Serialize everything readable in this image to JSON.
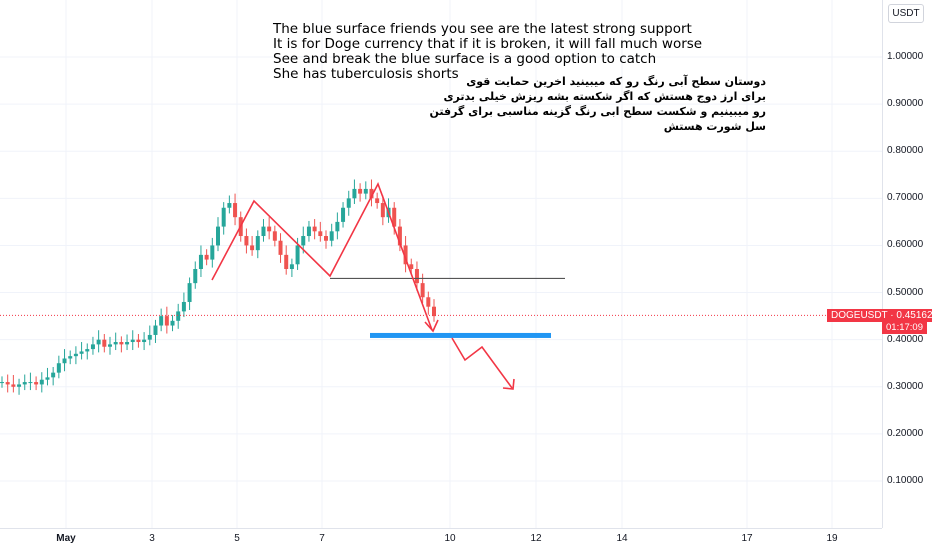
{
  "header": {
    "currency_label": "USDT"
  },
  "annotation_en": [
    "The blue surface friends you see are the latest strong support",
    "It is for Doge currency that if it is broken, it will fall much worse",
    "See and break the blue surface is a good option to catch",
    "She has tuberculosis shorts"
  ],
  "annotation_fa": [
    "دوستان سطح آبی رنگ رو که میبینید اخرین حمایت قوی",
    "برای ارز دوج هستش که اگر شکسته بشه ریزش خیلی بدتری",
    "رو میبینیم و شکست سطح ابی رنگ گزینه مناسبی برای گرفتن",
    "سل شورت هستش"
  ],
  "ticker": {
    "symbol": "DOGEUSDT",
    "price": "0.45162",
    "countdown": "01:17:09"
  },
  "colors": {
    "up": "#26a69a",
    "down": "#ef5350",
    "support": "#2196f3",
    "drawing": "#f23645"
  },
  "chart_data": {
    "type": "candlestick",
    "symbol": "DOGEUSDT",
    "y_ticks": [
      "1.00000",
      "0.90000",
      "0.80000",
      "0.70000",
      "0.60000",
      "0.50000",
      "0.40000",
      "0.30000",
      "0.20000",
      "0.10000"
    ],
    "y_tick_values": [
      1.0,
      0.9,
      0.8,
      0.7,
      0.6,
      0.5,
      0.4,
      0.3,
      0.2,
      0.1
    ],
    "x_ticks": [
      "May",
      "3",
      "5",
      "7",
      "10",
      "12",
      "14",
      "17",
      "19"
    ],
    "ylim": [
      0.0,
      1.12
    ],
    "last_price": 0.45162,
    "support_zone": {
      "price": 0.41,
      "label": "blue surface"
    },
    "horizontal_level": 0.53,
    "close_path": [
      0.31,
      0.305,
      0.3,
      0.305,
      0.31,
      0.31,
      0.305,
      0.315,
      0.32,
      0.33,
      0.35,
      0.36,
      0.365,
      0.37,
      0.375,
      0.38,
      0.39,
      0.4,
      0.385,
      0.39,
      0.395,
      0.39,
      0.395,
      0.4,
      0.395,
      0.4,
      0.41,
      0.43,
      0.45,
      0.43,
      0.44,
      0.46,
      0.48,
      0.52,
      0.55,
      0.58,
      0.57,
      0.6,
      0.64,
      0.68,
      0.69,
      0.66,
      0.62,
      0.6,
      0.59,
      0.62,
      0.64,
      0.63,
      0.61,
      0.58,
      0.55,
      0.56,
      0.6,
      0.62,
      0.64,
      0.63,
      0.62,
      0.61,
      0.63,
      0.65,
      0.68,
      0.7,
      0.72,
      0.71,
      0.72,
      0.7,
      0.69,
      0.66,
      0.68,
      0.64,
      0.6,
      0.56,
      0.55,
      0.52,
      0.49,
      0.47,
      0.45
    ]
  }
}
